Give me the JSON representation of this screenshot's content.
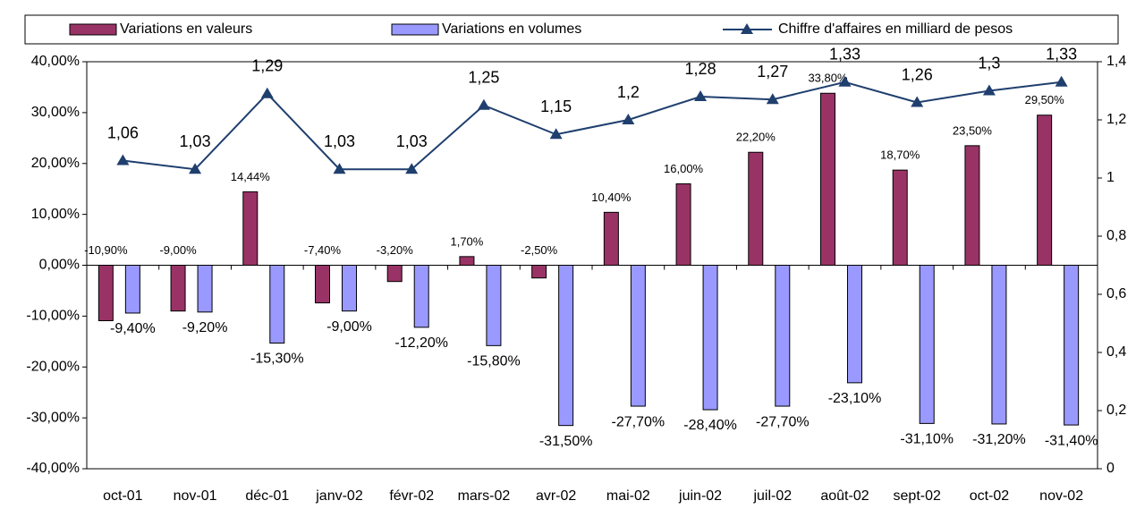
{
  "chart_data": {
    "type": "bar",
    "categories": [
      "oct-01",
      "nov-01",
      "déc-01",
      "janv-02",
      "févr-02",
      "mars-02",
      "avr-02",
      "mai-02",
      "juin-02",
      "juil-02",
      "août-02",
      "sept-02",
      "oct-02",
      "nov-02"
    ],
    "series": [
      {
        "name": "Variations en valeurs",
        "color": "#993366",
        "values": [
          -10.9,
          -9.0,
          14.44,
          -7.4,
          -3.2,
          1.7,
          -2.5,
          10.4,
          16.0,
          22.2,
          33.8,
          18.7,
          23.5,
          29.5
        ],
        "value_labels": [
          "-10,90%",
          "-9,00%",
          "14,44%",
          "-7,40%",
          "-3,20%",
          "1,70%",
          "-2,50%",
          "10,40%",
          "16,00%",
          "22,20%",
          "33,80%",
          "18,70%",
          "23,50%",
          "29,50%"
        ]
      },
      {
        "name": "Variations en volumes",
        "color": "#9999ff",
        "values": [
          -9.4,
          -9.2,
          -15.3,
          -9.0,
          -12.2,
          -15.8,
          -31.5,
          -27.7,
          -28.4,
          -27.7,
          -23.1,
          -31.1,
          -31.2,
          -31.4
        ],
        "value_labels": [
          "-9,40%",
          "-9,20%",
          "-15,30%",
          "-9,00%",
          "-12,20%",
          "-15,80%",
          "-31,50%",
          "-27,70%",
          "-28,40%",
          "-27,70%",
          "-23,10%",
          "-31,10%",
          "-31,20%",
          "-31,40%"
        ]
      },
      {
        "name": "Chiffre d'affaires en milliard de pesos",
        "color": "#1f3f6e",
        "type": "line",
        "axis": "y2",
        "values": [
          1.06,
          1.03,
          1.29,
          1.03,
          1.03,
          1.25,
          1.15,
          1.2,
          1.28,
          1.27,
          1.33,
          1.26,
          1.3,
          1.33
        ],
        "value_labels": [
          "1,06",
          "1,03",
          "1,29",
          "1,03",
          "1,03",
          "1,25",
          "1,15",
          "1,2",
          "1,28",
          "1,27",
          "1,33",
          "1,26",
          "1,3",
          "1,33"
        ]
      }
    ],
    "ylim": [
      -40,
      40
    ],
    "yticks": [
      {
        "value": -40,
        "label": "-40,00%"
      },
      {
        "value": -30,
        "label": "-30,00%"
      },
      {
        "value": -20,
        "label": "-20,00%"
      },
      {
        "value": -10,
        "label": "-10,00%"
      },
      {
        "value": 0,
        "label": "0,00%"
      },
      {
        "value": 10,
        "label": "10,00%"
      },
      {
        "value": 20,
        "label": "20,00%"
      },
      {
        "value": 30,
        "label": "30,00%"
      },
      {
        "value": 40,
        "label": "40,00%"
      }
    ],
    "y2lim": [
      0,
      1.4
    ],
    "y2ticks": [
      0,
      {
        "value": 0.2,
        "label": "0,2"
      },
      {
        "value": 0.4,
        "label": "0,4"
      },
      {
        "value": 0.6,
        "label": "0,6"
      },
      {
        "value": 0.8,
        "label": "0,8"
      },
      1,
      {
        "value": 1.2,
        "label": "1,2"
      },
      {
        "value": 1.4,
        "label": "1,4"
      }
    ],
    "legend": "top"
  }
}
